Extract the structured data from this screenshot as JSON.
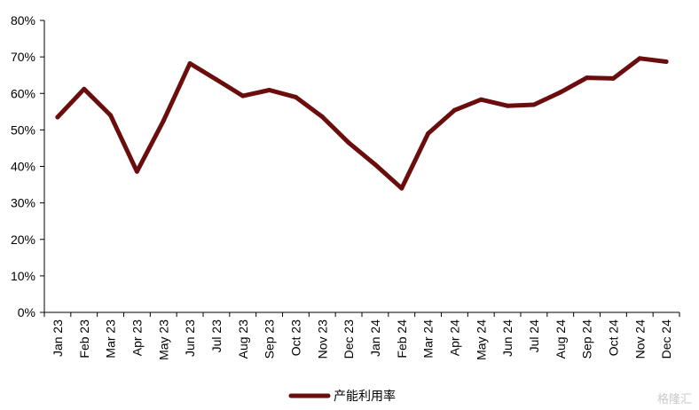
{
  "chart_data": {
    "type": "line",
    "categories": [
      "Jan 23",
      "Feb 23",
      "Mar 23",
      "Apr 23",
      "May 23",
      "Jun 23",
      "Jul 23",
      "Aug 23",
      "Sep 23",
      "Oct 23",
      "Nov 23",
      "Dec 23",
      "Jan 24",
      "Feb 24",
      "Mar 24",
      "Apr 24",
      "May 24",
      "Jun 24",
      "Jul 24",
      "Aug 24",
      "Sep 24",
      "Oct 24",
      "Nov 24",
      "Dec 24"
    ],
    "series": [
      {
        "name": "产能利用率",
        "color": "#6b0d0d",
        "values": [
          53.5,
          61.2,
          54.0,
          38.6,
          52.5,
          68.2,
          63.8,
          59.3,
          60.9,
          59.0,
          53.6,
          46.5,
          40.5,
          34.0,
          49.0,
          55.4,
          58.3,
          56.6,
          56.9,
          60.3,
          64.3,
          64.1,
          69.6,
          68.7
        ]
      }
    ],
    "ylim": [
      0,
      80
    ],
    "yticks": [
      "0%",
      "10%",
      "20%",
      "30%",
      "40%",
      "50%",
      "60%",
      "70%",
      "80%"
    ],
    "legend_position": "bottom-center",
    "grid": false
  },
  "watermark": "格隆汇"
}
